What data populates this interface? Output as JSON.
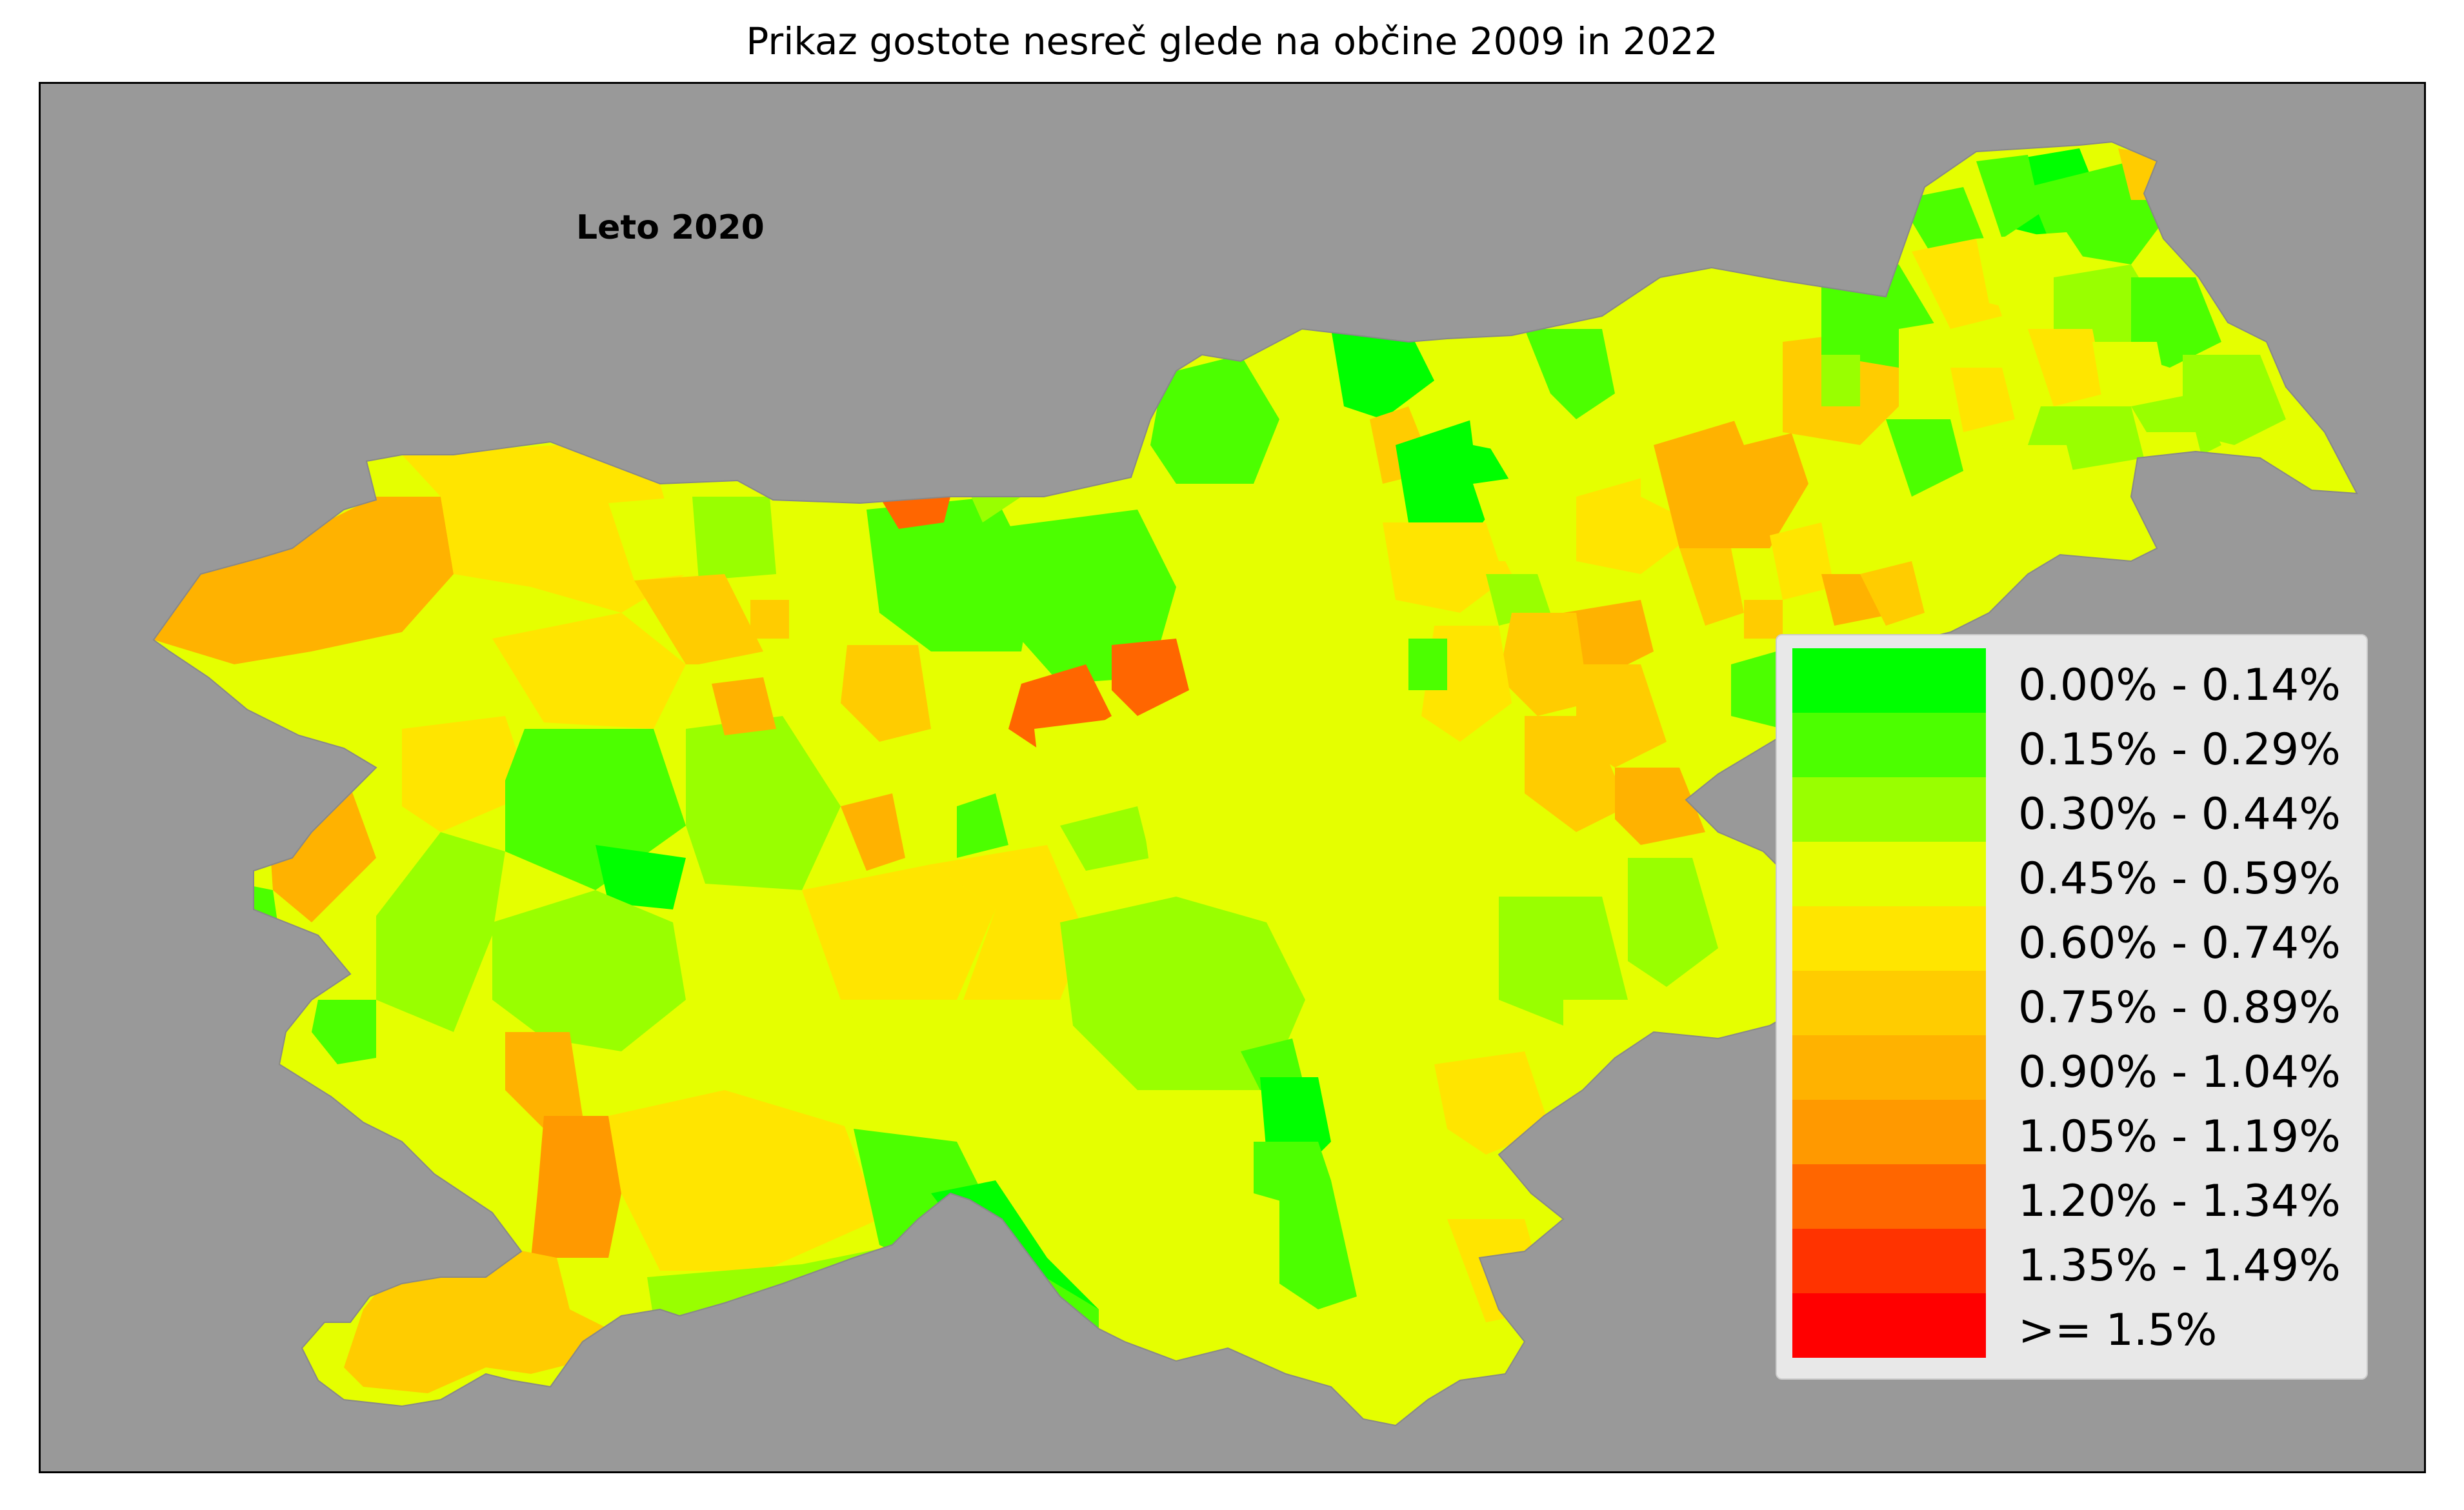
{
  "title": "Prikaz gostote nesreč glede na občine 2009 in 2022",
  "year_label": "Leto 2020",
  "background_color": "#999999",
  "legend": {
    "items": [
      {
        "label": "0.00% - 0.14%",
        "color": "#00ff00"
      },
      {
        "label": "0.15% - 0.29%",
        "color": "#4cff00"
      },
      {
        "label": "0.30% - 0.44%",
        "color": "#99ff00"
      },
      {
        "label": "0.45% - 0.59%",
        "color": "#e5ff00"
      },
      {
        "label": "0.60% - 0.74%",
        "color": "#ffe500"
      },
      {
        "label": "0.75% - 0.89%",
        "color": "#ffcc00"
      },
      {
        "label": "0.90% - 1.04%",
        "color": "#ffb200"
      },
      {
        "label": "1.05% - 1.19%",
        "color": "#ff9900"
      },
      {
        "label": "1.20% - 1.34%",
        "color": "#ff6600"
      },
      {
        "label": "1.35% - 1.49%",
        "color": "#ff3300"
      },
      {
        "label": ">= 1.5%",
        "color": "#ff0000"
      }
    ]
  }
}
